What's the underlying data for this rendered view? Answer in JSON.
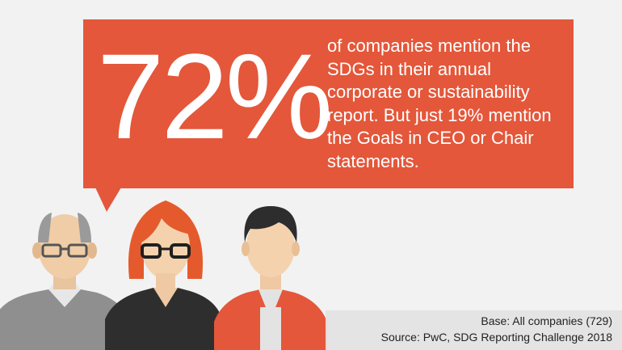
{
  "headline": {
    "value": "72%",
    "statement": "of companies mention the SDGs in their annual corporate or sustainability report. But just 19% mention the Goals in CEO or Chair statements."
  },
  "footer": {
    "base": "Base: All companies (729)",
    "source": "Source: PwC, SDG Reporting Challenge 2018"
  },
  "colors": {
    "accent": "#e4573a",
    "background": "#f2f2f2",
    "text_on_accent": "#ffffff"
  },
  "figures": [
    "older-man-with-glasses",
    "woman-with-glasses",
    "young-man"
  ]
}
